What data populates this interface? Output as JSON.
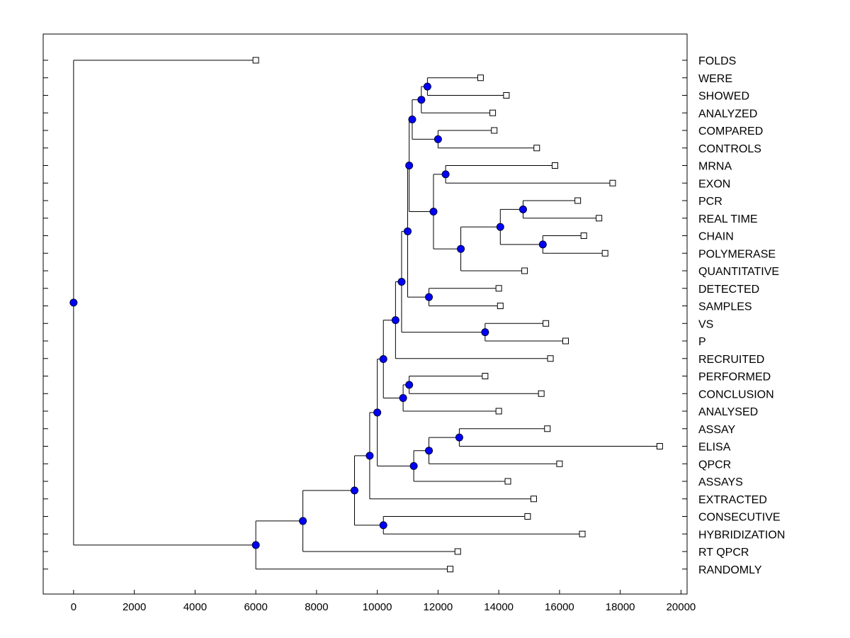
{
  "chart_data": {
    "type": "dendrogram",
    "x_ticks": [
      "0",
      "2000",
      "4000",
      "6000",
      "8000",
      "10000",
      "12000",
      "14000",
      "16000",
      "18000",
      "20000"
    ],
    "x_tick_values": [
      0,
      2000,
      4000,
      6000,
      8000,
      10000,
      12000,
      14000,
      16000,
      18000,
      20000
    ],
    "xlim": [
      -1000,
      20200
    ],
    "leaves": [
      {
        "label": "FOLDS",
        "x": 6000
      },
      {
        "label": "WERE",
        "x": 13400
      },
      {
        "label": "SHOWED",
        "x": 14250
      },
      {
        "label": "ANALYZED",
        "x": 13800
      },
      {
        "label": "COMPARED",
        "x": 13850
      },
      {
        "label": "CONTROLS",
        "x": 15250
      },
      {
        "label": "MRNA",
        "x": 15850
      },
      {
        "label": "EXON",
        "x": 17750
      },
      {
        "label": "PCR",
        "x": 16600
      },
      {
        "label": "REAL TIME",
        "x": 17300
      },
      {
        "label": "CHAIN",
        "x": 16800
      },
      {
        "label": "POLYMERASE",
        "x": 17500
      },
      {
        "label": "QUANTITATIVE",
        "x": 14850
      },
      {
        "label": "DETECTED",
        "x": 14000
      },
      {
        "label": "SAMPLES",
        "x": 14050
      },
      {
        "label": "VS",
        "x": 15550
      },
      {
        "label": "P",
        "x": 16200
      },
      {
        "label": "RECRUITED",
        "x": 15700
      },
      {
        "label": "PERFORMED",
        "x": 13550
      },
      {
        "label": "CONCLUSION",
        "x": 15400
      },
      {
        "label": "ANALYSED",
        "x": 14000
      },
      {
        "label": "ASSAY",
        "x": 15600
      },
      {
        "label": "ELISA",
        "x": 19300
      },
      {
        "label": "QPCR",
        "x": 16000
      },
      {
        "label": "ASSAYS",
        "x": 14300
      },
      {
        "label": "EXTRACTED",
        "x": 15150
      },
      {
        "label": "CONSECUTIVE",
        "x": 14950
      },
      {
        "label": "HYBRIDIZATION",
        "x": 16750
      },
      {
        "label": "RT QPCR",
        "x": 12650
      },
      {
        "label": "RANDOMLY",
        "x": 12400
      }
    ],
    "merges": [
      {
        "id": "n1",
        "x": 11650,
        "children": [
          "WERE",
          "SHOWED"
        ]
      },
      {
        "id": "n2",
        "x": 11450,
        "children": [
          "n1",
          "ANALYZED"
        ]
      },
      {
        "id": "n3",
        "x": 12000,
        "children": [
          "COMPARED",
          "CONTROLS"
        ]
      },
      {
        "id": "n4",
        "x": 11150,
        "children": [
          "n2",
          "n3"
        ]
      },
      {
        "id": "n5",
        "x": 12250,
        "children": [
          "MRNA",
          "EXON"
        ]
      },
      {
        "id": "n6",
        "x": 14800,
        "children": [
          "PCR",
          "REAL TIME"
        ]
      },
      {
        "id": "n7",
        "x": 15450,
        "children": [
          "CHAIN",
          "POLYMERASE"
        ]
      },
      {
        "id": "n8",
        "x": 14050,
        "children": [
          "n6",
          "n7"
        ]
      },
      {
        "id": "n9",
        "x": 12750,
        "children": [
          "n8",
          "QUANTITATIVE"
        ]
      },
      {
        "id": "n10",
        "x": 11850,
        "children": [
          "n5",
          "n9"
        ]
      },
      {
        "id": "n11",
        "x": 11050,
        "children": [
          "n4",
          "n10"
        ]
      },
      {
        "id": "n12",
        "x": 11700,
        "children": [
          "DETECTED",
          "SAMPLES"
        ]
      },
      {
        "id": "n13",
        "x": 11000,
        "children": [
          "n11",
          "n12"
        ]
      },
      {
        "id": "n14",
        "x": 13550,
        "children": [
          "VS",
          "P"
        ]
      },
      {
        "id": "n15",
        "x": 10800,
        "children": [
          "n13",
          "n14"
        ]
      },
      {
        "id": "n16",
        "x": 10600,
        "children": [
          "n15",
          "RECRUITED"
        ]
      },
      {
        "id": "n17",
        "x": 11050,
        "children": [
          "PERFORMED",
          "CONCLUSION"
        ]
      },
      {
        "id": "n18",
        "x": 10850,
        "children": [
          "n17",
          "ANALYSED"
        ]
      },
      {
        "id": "n19",
        "x": 10200,
        "children": [
          "n16",
          "n18"
        ]
      },
      {
        "id": "n20",
        "x": 12700,
        "children": [
          "ASSAY",
          "ELISA"
        ]
      },
      {
        "id": "n21",
        "x": 11700,
        "children": [
          "n20",
          "QPCR"
        ]
      },
      {
        "id": "n22",
        "x": 11200,
        "children": [
          "n21",
          "ASSAYS"
        ]
      },
      {
        "id": "n23",
        "x": 10000,
        "children": [
          "n19",
          "n22"
        ]
      },
      {
        "id": "n24",
        "x": 9750,
        "children": [
          "n23",
          "EXTRACTED"
        ]
      },
      {
        "id": "n25",
        "x": 10200,
        "children": [
          "CONSECUTIVE",
          "HYBRIDIZATION"
        ]
      },
      {
        "id": "n26",
        "x": 9250,
        "children": [
          "n24",
          "n25"
        ]
      },
      {
        "id": "n27",
        "x": 7550,
        "children": [
          "n26",
          "RT QPCR"
        ]
      },
      {
        "id": "n28",
        "x": 6000,
        "children": [
          "n27",
          "RANDOMLY"
        ]
      },
      {
        "id": "n29",
        "x": 0,
        "children": [
          "FOLDS",
          "n28"
        ]
      }
    ]
  }
}
